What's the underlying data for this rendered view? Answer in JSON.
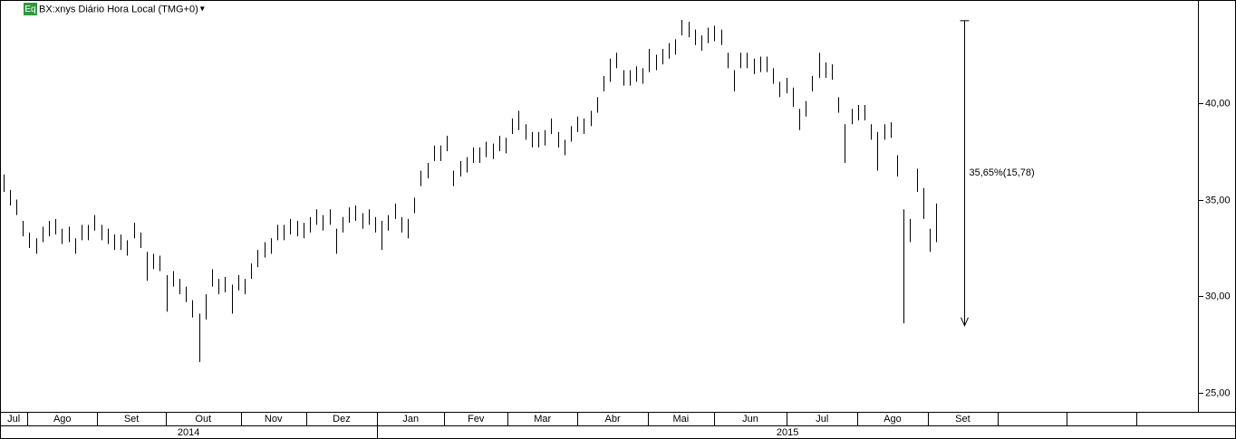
{
  "header": {
    "icon": "Eq",
    "title": "BX:xnys Diário Hora Local (TMG+0)",
    "menu": "▾"
  },
  "chart_data": {
    "type": "ohlc",
    "series": [
      {
        "name": "high",
        "color": "#000000",
        "values": [
          36.3,
          35.5,
          35.0,
          33.9,
          33.3,
          33.0,
          33.6,
          33.9,
          34.0,
          33.5,
          33.6,
          33.0,
          33.7,
          33.7,
          34.2,
          33.7,
          33.5,
          33.2,
          33.2,
          32.9,
          33.8,
          33.3,
          32.3,
          32.2,
          32.1,
          31.1,
          31.3,
          30.9,
          30.5,
          29.8,
          29.1,
          30.1,
          31.4,
          30.9,
          31.0,
          30.6,
          31.1,
          30.9,
          31.7,
          32.4,
          32.8,
          33.0,
          33.7,
          33.7,
          34.0,
          33.9,
          33.8,
          34.1,
          34.5,
          34.2,
          34.5,
          33.5,
          34.1,
          34.6,
          34.7,
          34.3,
          34.5,
          34.1,
          33.9,
          34.2,
          34.8,
          34.1,
          34.0,
          35.1,
          36.5,
          36.9,
          37.8,
          37.8,
          38.3,
          36.5,
          37.0,
          37.2,
          37.7,
          37.7,
          38.0,
          37.9,
          38.3,
          38.2,
          39.2,
          39.6,
          38.9,
          38.5,
          38.5,
          38.6,
          39.2,
          38.5,
          38.1,
          38.8,
          39.3,
          39.2,
          39.6,
          40.3,
          41.4,
          42.3,
          42.6,
          41.7,
          41.7,
          41.9,
          41.8,
          42.8,
          42.5,
          42.8,
          43.1,
          43.3,
          44.3,
          44.2,
          43.8,
          43.5,
          43.9,
          44.0,
          43.8,
          42.6,
          41.7,
          42.6,
          42.6,
          42.3,
          42.4,
          42.4,
          41.8,
          41.1,
          41.3,
          40.8,
          39.7,
          40.1,
          41.4,
          42.6,
          42.1,
          42.0,
          40.3,
          38.9,
          39.7,
          39.9,
          39.9,
          38.9,
          38.5,
          38.9,
          39.0,
          37.3,
          34.5,
          34.0,
          36.6,
          35.6,
          33.5,
          34.8
        ]
      },
      {
        "name": "low",
        "color": "#000000",
        "values": [
          35.4,
          34.7,
          34.2,
          33.1,
          32.5,
          32.2,
          32.8,
          33.1,
          33.2,
          32.7,
          32.8,
          32.2,
          32.9,
          32.9,
          33.4,
          32.9,
          32.7,
          32.4,
          32.4,
          32.1,
          33.0,
          32.5,
          30.8,
          31.4,
          31.3,
          29.2,
          30.5,
          30.1,
          29.7,
          28.9,
          26.6,
          28.8,
          30.5,
          30.1,
          30.2,
          29.1,
          30.3,
          30.1,
          30.9,
          31.5,
          32.0,
          32.2,
          32.9,
          32.9,
          33.2,
          33.1,
          33.0,
          33.3,
          33.7,
          33.4,
          33.7,
          32.2,
          33.3,
          33.8,
          33.9,
          33.5,
          33.7,
          33.3,
          32.4,
          33.4,
          34.0,
          33.3,
          33.0,
          34.3,
          35.7,
          36.1,
          37.0,
          37.0,
          37.5,
          35.7,
          36.2,
          36.4,
          36.9,
          36.9,
          37.2,
          37.1,
          37.5,
          37.4,
          38.4,
          38.6,
          38.1,
          37.7,
          37.7,
          37.8,
          38.4,
          37.7,
          37.3,
          38.0,
          38.5,
          38.4,
          38.8,
          39.5,
          40.6,
          41.1,
          41.8,
          40.9,
          40.9,
          41.1,
          41.0,
          41.6,
          41.7,
          42.0,
          42.3,
          42.5,
          43.5,
          43.4,
          43.0,
          42.7,
          43.1,
          43.2,
          43.0,
          41.8,
          40.6,
          41.8,
          41.8,
          41.5,
          41.6,
          41.6,
          41.0,
          40.3,
          40.5,
          39.8,
          38.6,
          39.3,
          40.6,
          41.3,
          41.3,
          41.2,
          39.5,
          36.9,
          38.9,
          39.1,
          39.1,
          38.1,
          36.5,
          38.1,
          38.2,
          36.2,
          28.6,
          32.8,
          35.4,
          34.0,
          32.3,
          32.8
        ]
      }
    ],
    "xlim": [
      0,
      183.6
    ],
    "ylim": [
      24.02,
      45.33
    ],
    "yticks": [
      {
        "value": 25,
        "label": "25,00"
      },
      {
        "value": 30,
        "label": "30,00"
      },
      {
        "value": 35,
        "label": "35,00"
      },
      {
        "value": 40,
        "label": "40,00"
      }
    ],
    "xticks": [
      4.2,
      14.9,
      25.4,
      36.9,
      46.9,
      57.8,
      68.1,
      77.8,
      88.5,
      99.3,
      109.4,
      120.6,
      131.4,
      142.2,
      152.9,
      163.5,
      174.2
    ],
    "months": [
      "Jul",
      "Ago",
      "Set",
      "Out",
      "Nov",
      "Dez",
      "Jan",
      "Fev",
      "Mar",
      "Abr",
      "Mai",
      "Jun",
      "Jul",
      "Ago",
      "Set"
    ],
    "year_ticks": [
      57.8
    ],
    "years": [
      "2014",
      "2015"
    ],
    "measure": {
      "at": 147.8,
      "from": 44.26,
      "to": 28.48,
      "label": "35,65%(15,78)"
    }
  }
}
